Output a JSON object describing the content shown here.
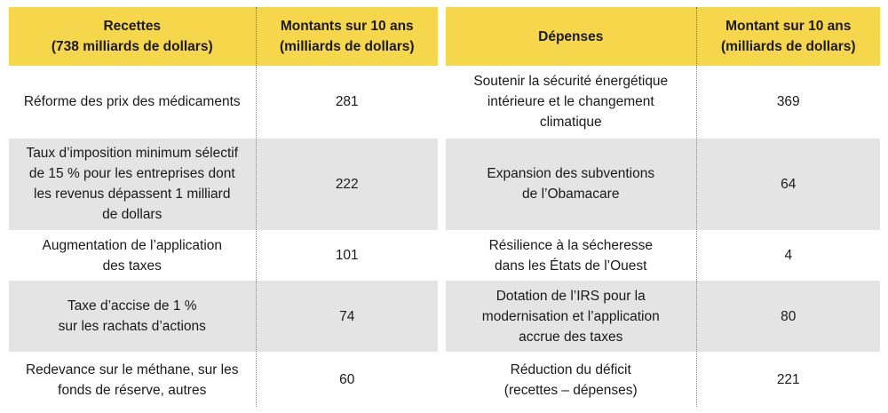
{
  "revenue": {
    "header": {
      "title_line1": "Recettes",
      "title_line2": "(738 milliards de dollars)",
      "amount_line1": "Montants sur 10 ans",
      "amount_line2": "(milliards de dollars)"
    },
    "rows": [
      {
        "label_lines": [
          "Réforme des prix des médicaments"
        ],
        "amount": "281"
      },
      {
        "label_lines": [
          "Taux d’imposition minimum sélectif",
          "de 15 % pour les entreprises dont",
          "les revenus dépassent 1 milliard",
          "de dollars"
        ],
        "amount": "222"
      },
      {
        "label_lines": [
          "Augmentation de l’application",
          "des taxes"
        ],
        "amount": "101"
      },
      {
        "label_lines": [
          "Taxe d’accise de 1 %",
          "sur les rachats d’actions"
        ],
        "amount": "74"
      },
      {
        "label_lines": [
          "Redevance sur le méthane, sur les",
          "fonds de réserve, autres"
        ],
        "amount": "60"
      }
    ]
  },
  "spending": {
    "header": {
      "title_line1": "Dépenses",
      "amount_line1": "Montant sur 10 ans",
      "amount_line2": "(milliards de dollars)"
    },
    "rows": [
      {
        "label_lines": [
          "Soutenir la sécurité énergétique",
          "intérieure et le changement",
          "climatique"
        ],
        "amount": "369"
      },
      {
        "label_lines": [
          "Expansion des subventions",
          "de l’Obamacare"
        ],
        "amount": "64"
      },
      {
        "label_lines": [
          "Résilience à la sécheresse",
          "dans les États de l’Ouest"
        ],
        "amount": "4"
      },
      {
        "label_lines": [
          "Dotation de l’IRS pour la",
          "modernisation et l’application",
          "accrue des taxes"
        ],
        "amount": "80"
      },
      {
        "label_lines": [
          "Réduction du déficit",
          "(recettes – dépenses)"
        ],
        "amount": "221"
      }
    ]
  },
  "colors": {
    "header_bg": "#f6d64a",
    "stripe_bg": "#e4e4e4"
  }
}
